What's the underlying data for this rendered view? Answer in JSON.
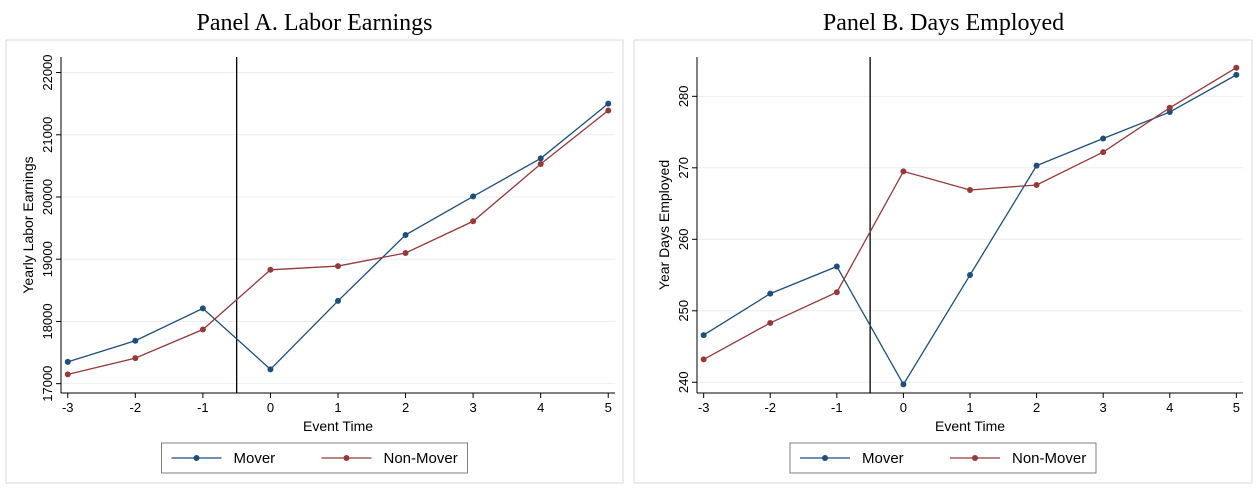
{
  "colors": {
    "mover": "#1f4e79",
    "non_mover": "#943a3a",
    "grid": "#e8eef2",
    "frame": "#d9d9d9"
  },
  "chart_data": [
    {
      "type": "line",
      "title": "Panel A. Labor Earnings",
      "xlabel": "Event Time",
      "ylabel": "Yearly Labor Earnings",
      "x": [
        -3,
        -2,
        -1,
        0,
        1,
        2,
        3,
        4,
        5
      ],
      "xticks": [
        "-3",
        "-2",
        "-1",
        "0",
        "1",
        "2",
        "3",
        "4",
        "5"
      ],
      "yticks": [
        "17000",
        "18000",
        "19000",
        "20000",
        "21000",
        "22000"
      ],
      "ytick_values": [
        17000,
        18000,
        19000,
        20000,
        21000,
        22000
      ],
      "xlim": [
        -3.1,
        5.1
      ],
      "ylim": [
        16850,
        22250
      ],
      "vline_x": -0.5,
      "grid": true,
      "legend_position": "bottom",
      "series": [
        {
          "name": "Mover",
          "color": "#1f4e79",
          "values": [
            17350,
            17690,
            18210,
            17230,
            18330,
            19390,
            20010,
            20620,
            21500
          ]
        },
        {
          "name": "Non-Mover",
          "color": "#943a3a",
          "values": [
            17150,
            17410,
            17870,
            18830,
            18890,
            19100,
            19610,
            20530,
            21390
          ]
        }
      ]
    },
    {
      "type": "line",
      "title": "Panel B. Days Employed",
      "xlabel": "Event Time",
      "ylabel": "Year Days Employed",
      "x": [
        -3,
        -2,
        -1,
        0,
        1,
        2,
        3,
        4,
        5
      ],
      "xticks": [
        "-3",
        "-2",
        "-1",
        "0",
        "1",
        "2",
        "3",
        "4",
        "5"
      ],
      "yticks": [
        "240",
        "250",
        "260",
        "270",
        "280"
      ],
      "ytick_values": [
        240,
        250,
        260,
        270,
        280
      ],
      "xlim": [
        -3.1,
        5.1
      ],
      "ylim": [
        238.5,
        285.5
      ],
      "vline_x": -0.5,
      "grid": true,
      "legend_position": "bottom",
      "series": [
        {
          "name": "Mover",
          "color": "#1f4e79",
          "values": [
            246.6,
            252.4,
            256.2,
            239.7,
            255.0,
            270.3,
            274.1,
            277.8,
            283.0
          ]
        },
        {
          "name": "Non-Mover",
          "color": "#943a3a",
          "values": [
            243.2,
            248.3,
            252.6,
            269.5,
            266.9,
            267.6,
            272.2,
            278.4,
            284.0
          ]
        }
      ]
    }
  ]
}
